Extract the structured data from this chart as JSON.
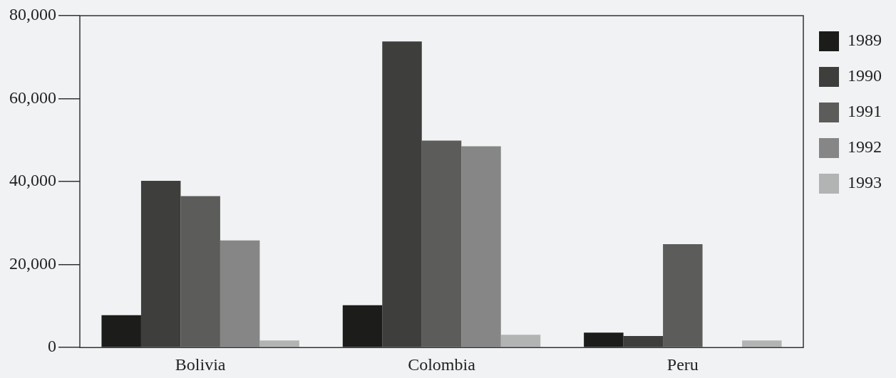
{
  "chart_data": {
    "type": "bar",
    "categories": [
      "Bolivia",
      "Colombia",
      "Peru"
    ],
    "series": [
      {
        "name": "1989",
        "color": "#1c1c1a",
        "values": [
          7800,
          10200,
          3600
        ]
      },
      {
        "name": "1990",
        "color": "#3e3e3c",
        "values": [
          40200,
          73800,
          2800
        ]
      },
      {
        "name": "1991",
        "color": "#5c5d5b",
        "values": [
          36500,
          49900,
          24900
        ]
      },
      {
        "name": "1992",
        "color": "#858685",
        "values": [
          25800,
          48500,
          null
        ]
      },
      {
        "name": "1993",
        "color": "#b2b3b3",
        "values": [
          1700,
          3100,
          1700
        ]
      }
    ],
    "ylim": [
      0,
      80000
    ],
    "yticks": [
      0,
      {
        "value": 20000,
        "label": "20,000"
      },
      {
        "value": 40000,
        "label": "40,000"
      },
      {
        "value": 60000,
        "label": "60,000"
      },
      {
        "value": 80000,
        "label": "80,000"
      }
    ],
    "grid": false,
    "legend": "right"
  }
}
